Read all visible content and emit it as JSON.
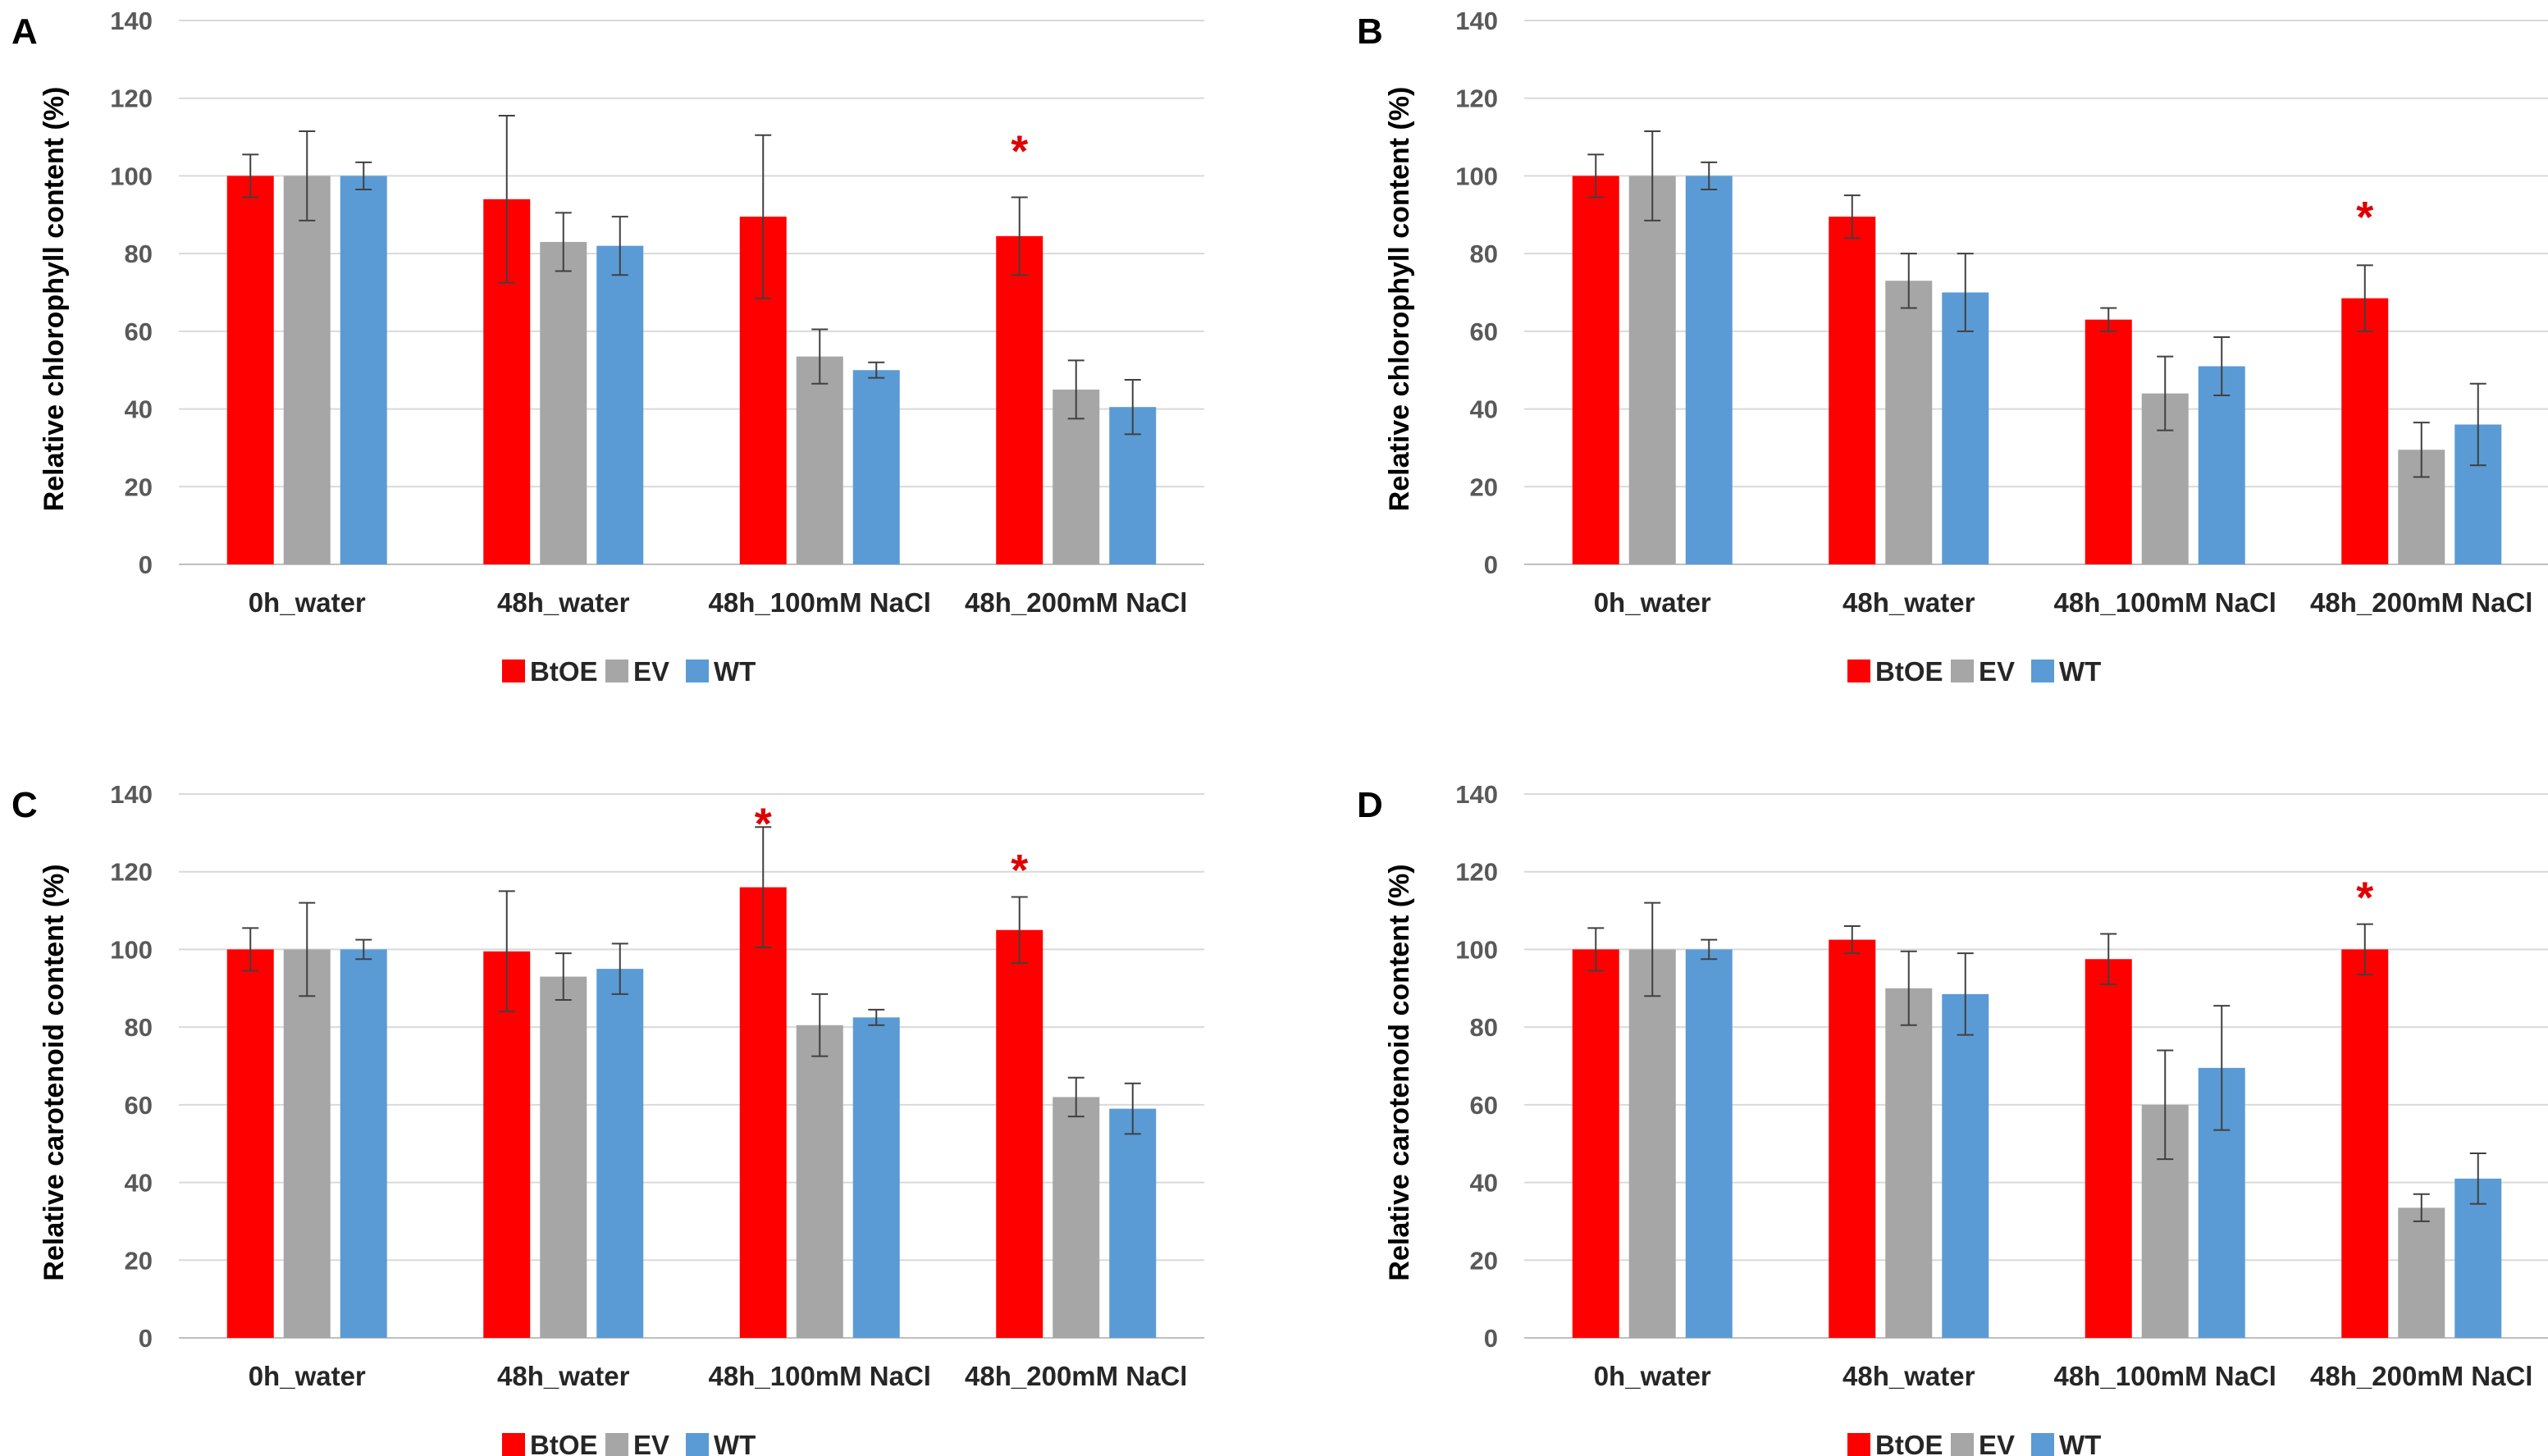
{
  "colors": {
    "BtOE": "#ff0000",
    "EV": "#a6a6a6",
    "WT": "#5b9bd5",
    "grid": "#d9d9d9",
    "errorbar": "#404040",
    "significance": "#e00000"
  },
  "chart_data": [
    {
      "panel": "A",
      "type": "bar",
      "ylabel": "Relative chlorophyll content (%)",
      "ylim": [
        0,
        140
      ],
      "yticks": [
        0,
        20,
        40,
        60,
        80,
        100,
        120,
        140
      ],
      "grid": true,
      "legend": "bottom-center",
      "categories": [
        "0h_water",
        "48h_water",
        "48h_100mM NaCl",
        "48h_200mM NaCl"
      ],
      "series": [
        {
          "name": "BtOE",
          "values": [
            100,
            94,
            89.5,
            84.5
          ],
          "errors": [
            5.5,
            21.5,
            21,
            10
          ]
        },
        {
          "name": "EV",
          "values": [
            100,
            83,
            53.5,
            45
          ],
          "errors": [
            11.5,
            7.5,
            7,
            7.5
          ]
        },
        {
          "name": "WT",
          "values": [
            100,
            82,
            50,
            40.5
          ],
          "errors": [
            3.5,
            7.5,
            2,
            7
          ]
        }
      ],
      "significance": [
        {
          "category": "48h_200mM NaCl",
          "series": "BtOE",
          "mark": "*",
          "value": 108
        }
      ]
    },
    {
      "panel": "B",
      "type": "bar",
      "ylabel": "Relative chlorophyll content (%)",
      "ylim": [
        0,
        140
      ],
      "yticks": [
        0,
        20,
        40,
        60,
        80,
        100,
        120,
        140
      ],
      "grid": true,
      "legend": "bottom-center",
      "categories": [
        "0h_water",
        "48h_water",
        "48h_100mM NaCl",
        "48h_200mM NaCl"
      ],
      "series": [
        {
          "name": "BtOE",
          "values": [
            100,
            89.5,
            63,
            68.5
          ],
          "errors": [
            5.5,
            5.5,
            3,
            8.5
          ]
        },
        {
          "name": "EV",
          "values": [
            100,
            73,
            44,
            29.5
          ],
          "errors": [
            11.5,
            7,
            9.5,
            7
          ]
        },
        {
          "name": "WT",
          "values": [
            100,
            70,
            51,
            36
          ],
          "errors": [
            3.5,
            10,
            7.5,
            10.5
          ]
        }
      ],
      "significance": [
        {
          "category": "48h_200mM NaCl",
          "series": "BtOE",
          "mark": "*",
          "value": 91
        }
      ]
    },
    {
      "panel": "C",
      "type": "bar",
      "ylabel": "Relative carotenoid content (%)",
      "ylim": [
        0,
        140
      ],
      "yticks": [
        0,
        20,
        40,
        60,
        80,
        100,
        120,
        140
      ],
      "grid": true,
      "legend": "bottom-center",
      "categories": [
        "0h_water",
        "48h_water",
        "48h_100mM NaCl",
        "48h_200mM NaCl"
      ],
      "series": [
        {
          "name": "BtOE",
          "values": [
            100,
            99.5,
            116,
            105
          ],
          "errors": [
            5.5,
            15.5,
            15.5,
            8.5
          ]
        },
        {
          "name": "EV",
          "values": [
            100,
            93,
            80.5,
            62
          ],
          "errors": [
            12,
            6,
            8,
            5
          ]
        },
        {
          "name": "WT",
          "values": [
            100,
            95,
            82.5,
            59
          ],
          "errors": [
            2.5,
            6.5,
            2,
            6.5
          ]
        }
      ],
      "significance": [
        {
          "category": "48h_100mM NaCl",
          "series": "BtOE",
          "mark": "*",
          "value": 134
        },
        {
          "category": "48h_200mM NaCl",
          "series": "BtOE",
          "mark": "*",
          "value": 122
        }
      ]
    },
    {
      "panel": "D",
      "type": "bar",
      "ylabel": "Relative carotenoid content (%)",
      "ylim": [
        0,
        140
      ],
      "yticks": [
        0,
        20,
        40,
        60,
        80,
        100,
        120,
        140
      ],
      "grid": true,
      "legend": "bottom-center",
      "categories": [
        "0h_water",
        "48h_water",
        "48h_100mM NaCl",
        "48h_200mM NaCl"
      ],
      "series": [
        {
          "name": "BtOE",
          "values": [
            100,
            102.5,
            97.5,
            100
          ],
          "errors": [
            5.5,
            3.5,
            6.5,
            6.5
          ]
        },
        {
          "name": "EV",
          "values": [
            100,
            90,
            60,
            33.5
          ],
          "errors": [
            12,
            9.5,
            14,
            3.5
          ]
        },
        {
          "name": "WT",
          "values": [
            100,
            88.5,
            69.5,
            41
          ],
          "errors": [
            2.5,
            10.5,
            16,
            6.5
          ]
        }
      ],
      "significance": [
        {
          "category": "48h_200mM NaCl",
          "series": "BtOE",
          "mark": "*",
          "value": 115
        }
      ]
    }
  ]
}
